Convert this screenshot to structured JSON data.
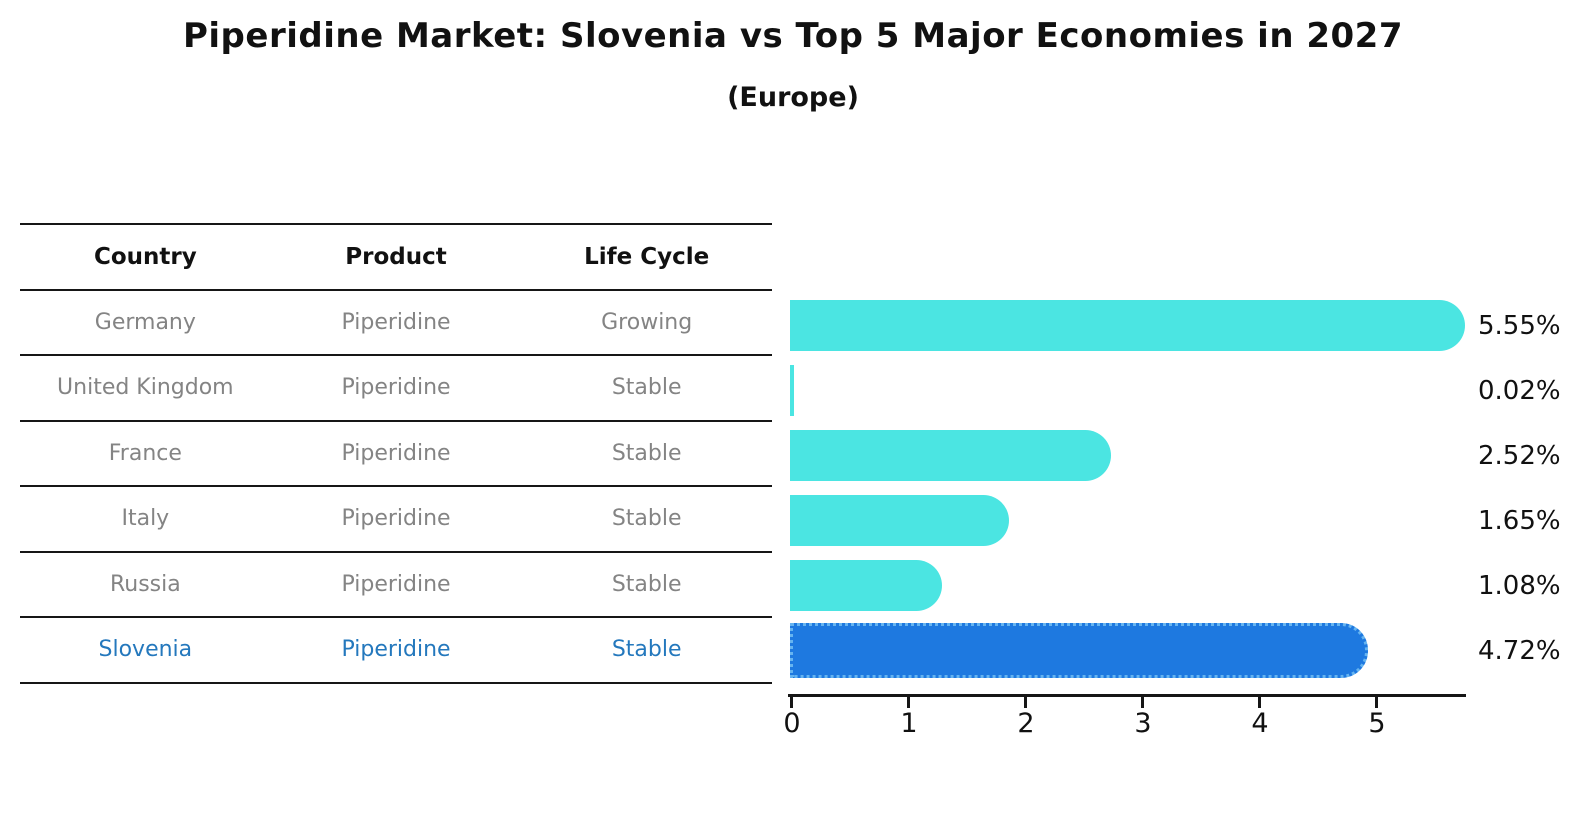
{
  "title": "Piperidine Market: Slovenia vs Top 5 Major Economies in 2027",
  "subtitle": "(Europe)",
  "table": {
    "headers": {
      "country": "Country",
      "product": "Product",
      "life_cycle": "Life Cycle"
    },
    "rows": [
      {
        "country": "Germany",
        "product": "Piperidine",
        "life_cycle": "Growing"
      },
      {
        "country": "United Kingdom",
        "product": "Piperidine",
        "life_cycle": "Stable"
      },
      {
        "country": "France",
        "product": "Piperidine",
        "life_cycle": "Stable"
      },
      {
        "country": "Italy",
        "product": "Piperidine",
        "life_cycle": "Stable"
      },
      {
        "country": "Russia",
        "product": "Piperidine",
        "life_cycle": "Stable"
      },
      {
        "country": "Slovenia",
        "product": "Piperidine",
        "life_cycle": "Stable"
      }
    ],
    "highlighted_row": "Slovenia"
  },
  "chart_data": {
    "type": "bar",
    "orientation": "horizontal",
    "title": "Piperidine Market: Slovenia vs Top 5 Major Economies in 2027 (Europe)",
    "categories": [
      "Germany",
      "United Kingdom",
      "France",
      "Italy",
      "Russia",
      "Slovenia"
    ],
    "values": [
      5.55,
      0.02,
      2.52,
      1.65,
      1.08,
      4.72
    ],
    "value_labels": [
      "5.55%",
      "0.02%",
      "2.52%",
      "1.65%",
      "1.08%",
      "4.72%"
    ],
    "unit": "%",
    "x_ticks": [
      "0",
      "1",
      "2",
      "3",
      "4",
      "5"
    ],
    "xlim": [
      0,
      5.8
    ],
    "highlight_index": 5,
    "grid": false,
    "legend": false
  },
  "colors": {
    "bar": "#4be5e2",
    "bar_highlight": "#1e79e0",
    "bar_highlight_border": "#66b4f0",
    "text_muted": "#848484",
    "text_highlight": "#2478bd",
    "text_dark": "#111111",
    "line": "#161616"
  }
}
